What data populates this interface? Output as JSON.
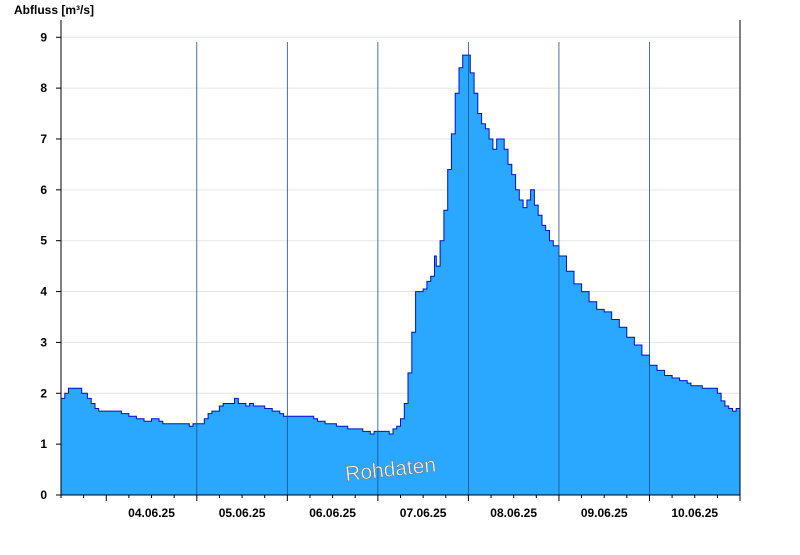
{
  "chart_data": {
    "type": "area",
    "ylabel": "Abfluss [m³/s]",
    "xlabel": "",
    "title": "",
    "ylim": [
      0,
      9.3
    ],
    "yticks": [
      0,
      1,
      2,
      3,
      4,
      5,
      6,
      7,
      8,
      9
    ],
    "xlim": [
      "03.06.25 12:00",
      "10.06.25 24:00"
    ],
    "day_lines": [
      "04.06.25 24:00",
      "05.06.25 24:00",
      "06.06.25 24:00",
      "07.06.25 24:00",
      "08.06.25 24:00",
      "09.06.25 24:00"
    ],
    "xtick_labels": [
      {
        "label": "04.06.25",
        "at": "04.06.25 12:00"
      },
      {
        "label": "05.06.25",
        "at": "05.06.25 12:00"
      },
      {
        "label": "06.06.25",
        "at": "06.06.25 12:00"
      },
      {
        "label": "07.06.25",
        "at": "07.06.25 12:00"
      },
      {
        "label": "08.06.25",
        "at": "08.06.25 12:00"
      },
      {
        "label": "09.06.25",
        "at": "09.06.25 12:00"
      },
      {
        "label": "10.06.25",
        "at": "10.06.25 12:00"
      }
    ],
    "grid": true,
    "fill_color": "#2aa7ff",
    "line_color": "#0010cc",
    "annotation": "Rohdaten",
    "series": [
      {
        "points": [
          [
            "03.06.25 12:00",
            1.9
          ],
          [
            "03.06.25 13:00",
            2.0
          ],
          [
            "03.06.25 14:00",
            2.1
          ],
          [
            "03.06.25 16:00",
            2.1
          ],
          [
            "03.06.25 17:30",
            2.0
          ],
          [
            "03.06.25 19:00",
            1.9
          ],
          [
            "03.06.25 20:00",
            1.8
          ],
          [
            "03.06.25 21:00",
            1.7
          ],
          [
            "03.06.25 22:00",
            1.65
          ],
          [
            "04.06.25 00:00",
            1.65
          ],
          [
            "04.06.25 03:00",
            1.65
          ],
          [
            "04.06.25 04:00",
            1.6
          ],
          [
            "04.06.25 06:00",
            1.55
          ],
          [
            "04.06.25 08:00",
            1.5
          ],
          [
            "04.06.25 10:00",
            1.45
          ],
          [
            "04.06.25 12:00",
            1.5
          ],
          [
            "04.06.25 14:00",
            1.45
          ],
          [
            "04.06.25 15:00",
            1.4
          ],
          [
            "04.06.25 19:00",
            1.4
          ],
          [
            "04.06.25 21:00",
            1.4
          ],
          [
            "04.06.25 22:00",
            1.35
          ],
          [
            "04.06.25 23:00",
            1.4
          ],
          [
            "05.06.25 00:00",
            1.4
          ],
          [
            "05.06.25 02:00",
            1.5
          ],
          [
            "05.06.25 03:00",
            1.6
          ],
          [
            "05.06.25 04:00",
            1.65
          ],
          [
            "05.06.25 06:00",
            1.75
          ],
          [
            "05.06.25 07:00",
            1.8
          ],
          [
            "05.06.25 09:00",
            1.8
          ],
          [
            "05.06.25 10:00",
            1.9
          ],
          [
            "05.06.25 11:00",
            1.8
          ],
          [
            "05.06.25 13:00",
            1.75
          ],
          [
            "05.06.25 14:00",
            1.8
          ],
          [
            "05.06.25 15:00",
            1.75
          ],
          [
            "05.06.25 18:00",
            1.7
          ],
          [
            "05.06.25 20:00",
            1.65
          ],
          [
            "05.06.25 22:00",
            1.6
          ],
          [
            "05.06.25 23:00",
            1.55
          ],
          [
            "06.06.25 04:00",
            1.55
          ],
          [
            "06.06.25 06:00",
            1.55
          ],
          [
            "06.06.25 07:00",
            1.5
          ],
          [
            "06.06.25 08:00",
            1.45
          ],
          [
            "06.06.25 10:00",
            1.4
          ],
          [
            "06.06.25 13:00",
            1.35
          ],
          [
            "06.06.25 16:00",
            1.3
          ],
          [
            "06.06.25 20:00",
            1.25
          ],
          [
            "06.06.25 22:00",
            1.2
          ],
          [
            "06.06.25 23:00",
            1.25
          ],
          [
            "07.06.25 01:00",
            1.25
          ],
          [
            "07.06.25 03:00",
            1.2
          ],
          [
            "07.06.25 04:00",
            1.3
          ],
          [
            "07.06.25 05:00",
            1.35
          ],
          [
            "07.06.25 06:00",
            1.5
          ],
          [
            "07.06.25 07:00",
            1.8
          ],
          [
            "07.06.25 08:00",
            2.4
          ],
          [
            "07.06.25 09:00",
            3.2
          ],
          [
            "07.06.25 10:00",
            4.0
          ],
          [
            "07.06.25 12:00",
            4.05
          ],
          [
            "07.06.25 13:00",
            4.2
          ],
          [
            "07.06.25 14:00",
            4.3
          ],
          [
            "07.06.25 15:00",
            4.7
          ],
          [
            "07.06.25 15:30",
            4.5
          ],
          [
            "07.06.25 16:30",
            5.0
          ],
          [
            "07.06.25 17:30",
            5.6
          ],
          [
            "07.06.25 18:30",
            6.4
          ],
          [
            "07.06.25 19:30",
            7.1
          ],
          [
            "07.06.25 20:30",
            7.9
          ],
          [
            "07.06.25 21:30",
            8.4
          ],
          [
            "07.06.25 22:30",
            8.65
          ],
          [
            "07.06.25 23:30",
            8.65
          ],
          [
            "08.06.25 00:30",
            8.3
          ],
          [
            "08.06.25 01:30",
            7.9
          ],
          [
            "08.06.25 02:30",
            7.5
          ],
          [
            "08.06.25 03:30",
            7.3
          ],
          [
            "08.06.25 04:30",
            7.2
          ],
          [
            "08.06.25 05:30",
            7.0
          ],
          [
            "08.06.25 06:30",
            6.8
          ],
          [
            "08.06.25 07:30",
            7.0
          ],
          [
            "08.06.25 08:30",
            7.0
          ],
          [
            "08.06.25 09:30",
            6.8
          ],
          [
            "08.06.25 10:30",
            6.5
          ],
          [
            "08.06.25 11:30",
            6.3
          ],
          [
            "08.06.25 12:30",
            6.0
          ],
          [
            "08.06.25 13:30",
            5.8
          ],
          [
            "08.06.25 14:30",
            5.65
          ],
          [
            "08.06.25 15:30",
            5.8
          ],
          [
            "08.06.25 16:30",
            6.0
          ],
          [
            "08.06.25 17:30",
            5.7
          ],
          [
            "08.06.25 18:30",
            5.5
          ],
          [
            "08.06.25 19:30",
            5.3
          ],
          [
            "08.06.25 20:30",
            5.2
          ],
          [
            "08.06.25 21:30",
            5.0
          ],
          [
            "08.06.25 22:30",
            4.9
          ],
          [
            "09.06.25 00:00",
            4.7
          ],
          [
            "09.06.25 02:00",
            4.4
          ],
          [
            "09.06.25 04:00",
            4.15
          ],
          [
            "09.06.25 06:00",
            4.0
          ],
          [
            "09.06.25 08:00",
            3.8
          ],
          [
            "09.06.25 10:00",
            3.65
          ],
          [
            "09.06.25 12:00",
            3.6
          ],
          [
            "09.06.25 14:00",
            3.45
          ],
          [
            "09.06.25 16:00",
            3.3
          ],
          [
            "09.06.25 18:00",
            3.1
          ],
          [
            "09.06.25 20:00",
            2.95
          ],
          [
            "09.06.25 22:00",
            2.75
          ],
          [
            "10.06.25 00:00",
            2.55
          ],
          [
            "10.06.25 02:00",
            2.45
          ],
          [
            "10.06.25 04:00",
            2.35
          ],
          [
            "10.06.25 06:00",
            2.3
          ],
          [
            "10.06.25 08:00",
            2.25
          ],
          [
            "10.06.25 10:00",
            2.2
          ],
          [
            "10.06.25 11:00",
            2.15
          ],
          [
            "10.06.25 14:00",
            2.1
          ],
          [
            "10.06.25 16:00",
            2.1
          ],
          [
            "10.06.25 18:00",
            2.0
          ],
          [
            "10.06.25 19:00",
            1.85
          ],
          [
            "10.06.25 20:00",
            1.75
          ],
          [
            "10.06.25 21:00",
            1.7
          ],
          [
            "10.06.25 22:00",
            1.65
          ],
          [
            "10.06.25 23:00",
            1.7
          ],
          [
            "10.06.25 24:00",
            1.7
          ]
        ]
      }
    ]
  }
}
